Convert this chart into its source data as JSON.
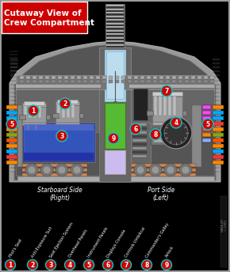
{
  "title": "Cutaway View of\nCrew Compartment",
  "title_bg": "#cc0000",
  "title_fg": "#ffffff",
  "bg_color": "#000000",
  "legend_labels": [
    "Pilot's Seat",
    "Anti-Exposure Suit",
    "Seat Ejection System",
    "Overhead Panels",
    "Instrument Panels",
    "Displays Console",
    "Controls Umbilical",
    "Commander's Galley",
    "Airlock"
  ],
  "starboard_label": "Starboard Side\n(Right)",
  "port_label": "Port Side\n(Left)",
  "hull_color": "#888888",
  "hull_fill": "#aaaaaa",
  "inner_bg": "#333333",
  "center_col_fill": "#666666",
  "light_blue": "#aaddee",
  "green_panel": "#66cc33",
  "lavender": "#ccbbee",
  "blue_screen": "#3355bb",
  "salmon": "#cc7755"
}
